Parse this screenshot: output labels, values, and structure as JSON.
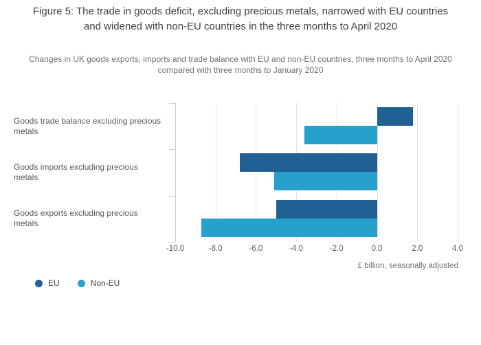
{
  "title": "Figure 5: The trade in goods deficit, excluding precious metals, narrowed with EU countries and widened with non-EU countries in the three months to April 2020",
  "subtitle": "Changes in UK goods exports, imports and trade balance with EU and non-EU countries, three months to April 2020 compared with three months to January 2020",
  "chart_data": {
    "type": "bar",
    "orientation": "horizontal",
    "categories": [
      "Goods trade balance excluding precious metals",
      "Goods imports excluding precious metals",
      "Goods exports excluding precious metals"
    ],
    "series": [
      {
        "name": "EU",
        "color": "#206095",
        "values": [
          1.8,
          -6.8,
          -5.0
        ]
      },
      {
        "name": "Non-EU",
        "color": "#27A0CC",
        "values": [
          -3.6,
          -5.1,
          -8.7
        ]
      }
    ],
    "xlabel": "£ billion, seasonally adjusted",
    "xlim": [
      -10,
      4
    ],
    "xticks": [
      -10,
      -8,
      -6,
      -4,
      -2,
      0,
      2,
      4
    ],
    "xtick_labels": [
      "-10.0",
      "-8.0",
      "-6.0",
      "-4.0",
      "-2.0",
      "0.0",
      "2.0",
      "4.0"
    ],
    "grid": true,
    "legend_position": "bottom-left"
  },
  "colors": {
    "eu": "#206095",
    "non_eu": "#27A0CC",
    "gridline": "#e4e4e4",
    "axis": "#c5cedd",
    "title_text": "#414042",
    "muted_text": "#707071",
    "label_text": "#58595b"
  }
}
